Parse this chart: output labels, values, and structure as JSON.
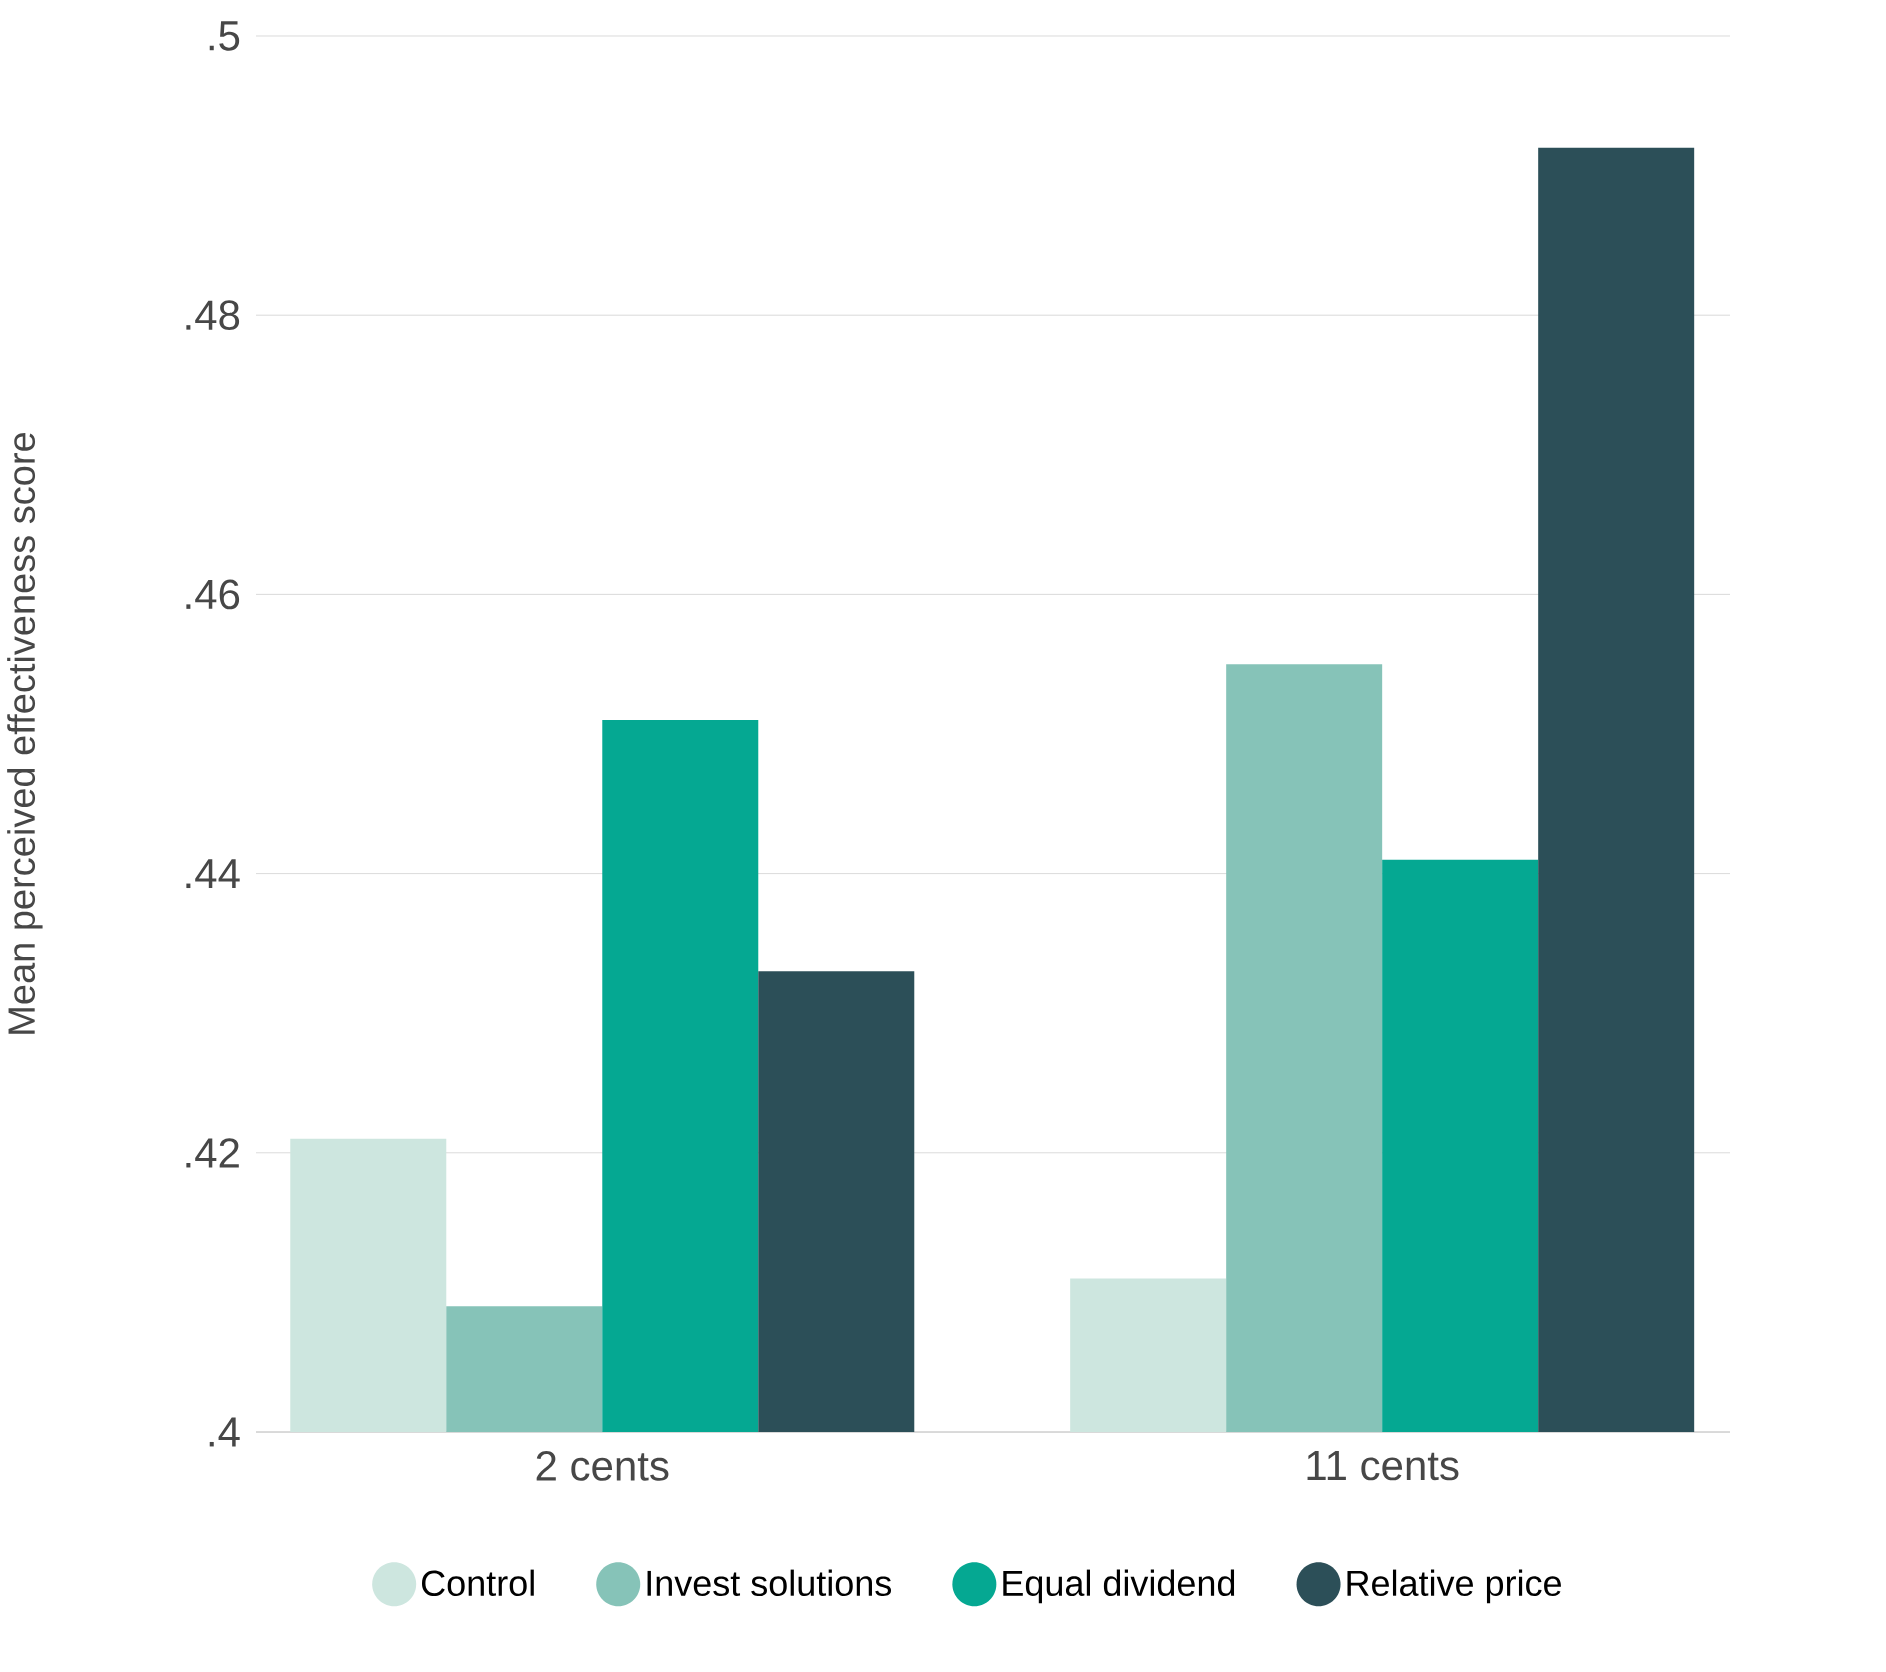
{
  "chart_data": {
    "type": "bar",
    "ylabel": "Mean perceived effectiveness score",
    "categories": [
      "2 cents",
      "11 cents"
    ],
    "series": [
      {
        "name": "Control",
        "color": "#cde6df",
        "values": [
          0.421,
          0.411
        ]
      },
      {
        "name": "Invest solutions",
        "color": "#86c3b8",
        "values": [
          0.409,
          0.455
        ]
      },
      {
        "name": "Equal dividend",
        "color": "#05a892",
        "values": [
          0.451,
          0.441
        ]
      },
      {
        "name": "Relative price",
        "color": "#2c4f58",
        "values": [
          0.433,
          0.492
        ]
      }
    ],
    "ylim": [
      0.4,
      0.5
    ],
    "yticks": [
      {
        "value": 0.4,
        "label": ".4"
      },
      {
        "value": 0.42,
        "label": ".42"
      },
      {
        "value": 0.44,
        "label": ".44"
      },
      {
        "value": 0.46,
        "label": ".46"
      },
      {
        "value": 0.48,
        "label": ".48"
      },
      {
        "value": 0.5,
        "label": ".5"
      }
    ],
    "grid": "y",
    "legend": "bottom"
  }
}
